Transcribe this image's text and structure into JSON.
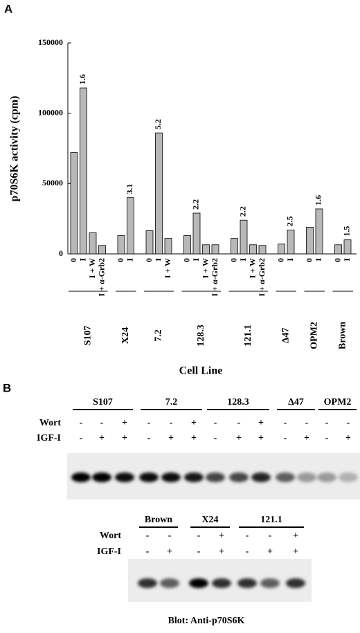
{
  "chart_data": {
    "type": "bar",
    "panel": "A",
    "ylabel": "p70S6K activity (cpm)",
    "xlabel": "Cell Line",
    "ylim": [
      0,
      150000
    ],
    "yticks": [
      0,
      50000,
      100000,
      150000
    ],
    "color": "#b8b8b8",
    "groups": [
      {
        "name": "S107",
        "categories": [
          "0",
          "I",
          "I + W",
          "I + α-Grb2"
        ],
        "values": [
          72000,
          118000,
          15000,
          6000
        ],
        "annotation": "1.6"
      },
      {
        "name": "X24",
        "categories": [
          "0",
          "I"
        ],
        "values": [
          13000,
          40000
        ],
        "annotation": "3.1"
      },
      {
        "name": "7.2",
        "categories": [
          "0",
          "I",
          "I + W"
        ],
        "values": [
          16500,
          86000,
          11000
        ],
        "annotation": "5.2"
      },
      {
        "name": "128.3",
        "categories": [
          "0",
          "I",
          "I + W",
          "I + α-Grb2"
        ],
        "values": [
          13000,
          29000,
          6500,
          6500
        ],
        "annotation": "2.2"
      },
      {
        "name": "121.1",
        "categories": [
          "0",
          "I",
          "I + W",
          "I + α-Grb2"
        ],
        "values": [
          11000,
          24000,
          6500,
          6000
        ],
        "annotation": "2.2"
      },
      {
        "name": "Δ47",
        "categories": [
          "0",
          "I"
        ],
        "values": [
          7000,
          17000
        ],
        "annotation": "2.5"
      },
      {
        "name": "OPM2",
        "categories": [
          "0",
          "I"
        ],
        "values": [
          19000,
          32000
        ],
        "annotation": "1.6"
      },
      {
        "name": "Brown",
        "categories": [
          "0",
          "I"
        ],
        "values": [
          6500,
          10000
        ],
        "annotation": "1.5"
      }
    ]
  },
  "blot": {
    "panel": "B",
    "caption": "Blot: Anti-p70S6K",
    "top": {
      "row_labels": [
        "Wort",
        "IGF-I"
      ],
      "groups": [
        {
          "name": "S107",
          "wort": [
            "-",
            "-",
            "+"
          ],
          "igf": [
            "-",
            "+",
            "+"
          ]
        },
        {
          "name": "7.2",
          "wort": [
            "-",
            "-",
            "+"
          ],
          "igf": [
            "-",
            "+",
            "+"
          ]
        },
        {
          "name": "128.3",
          "wort": [
            "-",
            "-",
            "+"
          ],
          "igf": [
            "-",
            "+",
            "+"
          ]
        },
        {
          "name": "Δ47",
          "wort": [
            "-",
            "-"
          ],
          "igf": [
            "-",
            "+"
          ]
        },
        {
          "name": "OPM2",
          "wort": [
            "-",
            "-"
          ],
          "igf": [
            "-",
            "+"
          ]
        }
      ]
    },
    "bottom": {
      "row_labels": [
        "Wort",
        "IGF-I"
      ],
      "groups": [
        {
          "name": "Brown",
          "wort": [
            "-",
            "-"
          ],
          "igf": [
            "-",
            "+"
          ]
        },
        {
          "name": "X24",
          "wort": [
            "-",
            "+"
          ],
          "igf": [
            "-",
            "+"
          ]
        },
        {
          "name": "121.1",
          "wort": [
            "-",
            "-",
            "+"
          ],
          "igf": [
            "-",
            "+",
            "+"
          ]
        }
      ]
    }
  }
}
